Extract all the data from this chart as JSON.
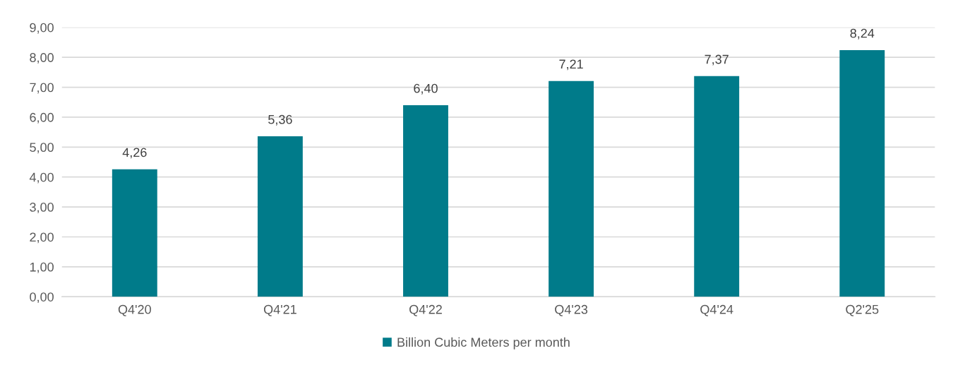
{
  "chart_data": {
    "type": "bar",
    "categories": [
      "Q4'20",
      "Q4'21",
      "Q4'22",
      "Q4'23",
      "Q4'24",
      "Q2'25"
    ],
    "series": [
      {
        "name": "Billion Cubic Meters per month",
        "color": "#007b8a",
        "values": [
          4.26,
          5.36,
          6.4,
          7.21,
          7.37,
          8.24
        ],
        "value_labels": [
          "4,26",
          "5,36",
          "6,40",
          "7,21",
          "7,37",
          "8,24"
        ]
      }
    ],
    "ylim": [
      0,
      9
    ],
    "yticks": [
      {
        "value": 0,
        "label": "0,00"
      },
      {
        "value": 1,
        "label": "1,00"
      },
      {
        "value": 2,
        "label": "2,00"
      },
      {
        "value": 3,
        "label": "3,00"
      },
      {
        "value": 4,
        "label": "4,00"
      },
      {
        "value": 5,
        "label": "5,00"
      },
      {
        "value": 6,
        "label": "6,00"
      },
      {
        "value": 7,
        "label": "7,00"
      },
      {
        "value": 8,
        "label": "8,00"
      },
      {
        "value": 9,
        "label": "9,00"
      }
    ],
    "grid": "y",
    "legend": "bottom"
  }
}
